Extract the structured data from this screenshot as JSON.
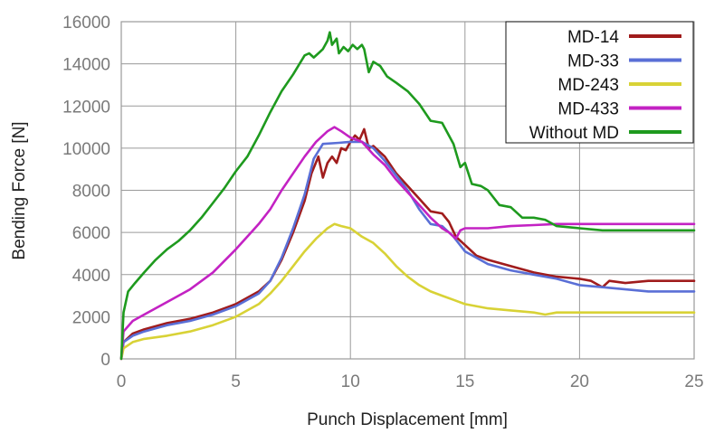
{
  "chart_data": {
    "type": "line",
    "title": "",
    "xlabel": "Punch Displacement [mm]",
    "ylabel": "Bending Force [N]",
    "xlim": [
      0,
      25
    ],
    "ylim": [
      0,
      16000
    ],
    "x_ticks": [
      0,
      5,
      10,
      15,
      20,
      25
    ],
    "x_tick_labels": [
      "0",
      "5",
      "10",
      "15",
      "20",
      "25"
    ],
    "y_ticks": [
      0,
      2000,
      4000,
      6000,
      8000,
      10000,
      12000,
      14000,
      16000
    ],
    "y_tick_labels": [
      "0",
      "2000",
      "4000",
      "6000",
      "8000",
      "10000",
      "12000",
      "14000",
      "16000"
    ],
    "grid": true,
    "legend_position": "top-right",
    "series": [
      {
        "name": "MD-14",
        "color": "#a01c1c",
        "points": [
          [
            0,
            0
          ],
          [
            0.1,
            800
          ],
          [
            0.5,
            1200
          ],
          [
            1,
            1400
          ],
          [
            2,
            1700
          ],
          [
            3,
            1900
          ],
          [
            4,
            2200
          ],
          [
            5,
            2600
          ],
          [
            6,
            3200
          ],
          [
            6.5,
            3700
          ],
          [
            7,
            4700
          ],
          [
            7.5,
            6000
          ],
          [
            8,
            7500
          ],
          [
            8.3,
            8800
          ],
          [
            8.6,
            9600
          ],
          [
            8.8,
            8600
          ],
          [
            9,
            9300
          ],
          [
            9.2,
            9600
          ],
          [
            9.4,
            9300
          ],
          [
            9.6,
            10000
          ],
          [
            9.8,
            9900
          ],
          [
            10,
            10300
          ],
          [
            10.2,
            10600
          ],
          [
            10.4,
            10400
          ],
          [
            10.6,
            10900
          ],
          [
            10.8,
            10000
          ],
          [
            11,
            10100
          ],
          [
            11.5,
            9600
          ],
          [
            12,
            8800
          ],
          [
            12.5,
            8200
          ],
          [
            13,
            7600
          ],
          [
            13.5,
            7000
          ],
          [
            14,
            6900
          ],
          [
            14.3,
            6500
          ],
          [
            14.6,
            5800
          ],
          [
            15,
            5400
          ],
          [
            15.5,
            4900
          ],
          [
            16,
            4700
          ],
          [
            17,
            4400
          ],
          [
            18,
            4100
          ],
          [
            19,
            3900
          ],
          [
            20,
            3800
          ],
          [
            20.5,
            3700
          ],
          [
            21,
            3400
          ],
          [
            21.3,
            3700
          ],
          [
            22,
            3600
          ],
          [
            23,
            3700
          ],
          [
            24,
            3700
          ],
          [
            25,
            3700
          ]
        ]
      },
      {
        "name": "MD-33",
        "color": "#5a6fd6",
        "points": [
          [
            0,
            0
          ],
          [
            0.1,
            800
          ],
          [
            0.5,
            1100
          ],
          [
            1,
            1300
          ],
          [
            2,
            1600
          ],
          [
            3,
            1800
          ],
          [
            4,
            2100
          ],
          [
            5,
            2500
          ],
          [
            6,
            3100
          ],
          [
            6.5,
            3700
          ],
          [
            7,
            4800
          ],
          [
            7.5,
            6200
          ],
          [
            8,
            7800
          ],
          [
            8.4,
            9500
          ],
          [
            8.8,
            10200
          ],
          [
            9.5,
            10250
          ],
          [
            10,
            10300
          ],
          [
            10.5,
            10300
          ],
          [
            11,
            10000
          ],
          [
            11.5,
            9400
          ],
          [
            12,
            8700
          ],
          [
            12.5,
            8000
          ],
          [
            13,
            7100
          ],
          [
            13.5,
            6400
          ],
          [
            14,
            6300
          ],
          [
            14.5,
            5800
          ],
          [
            15,
            5100
          ],
          [
            15.5,
            4800
          ],
          [
            16,
            4500
          ],
          [
            17,
            4200
          ],
          [
            18,
            4000
          ],
          [
            19,
            3800
          ],
          [
            20,
            3500
          ],
          [
            21,
            3400
          ],
          [
            22,
            3300
          ],
          [
            23,
            3200
          ],
          [
            24,
            3200
          ],
          [
            25,
            3200
          ]
        ]
      },
      {
        "name": "MD-243",
        "color": "#d8d236",
        "points": [
          [
            0,
            0
          ],
          [
            0.1,
            500
          ],
          [
            0.5,
            800
          ],
          [
            1,
            950
          ],
          [
            2,
            1100
          ],
          [
            3,
            1300
          ],
          [
            4,
            1600
          ],
          [
            5,
            2000
          ],
          [
            6,
            2600
          ],
          [
            6.5,
            3100
          ],
          [
            7,
            3700
          ],
          [
            7.5,
            4400
          ],
          [
            8,
            5100
          ],
          [
            8.5,
            5700
          ],
          [
            9,
            6200
          ],
          [
            9.3,
            6400
          ],
          [
            9.6,
            6300
          ],
          [
            10,
            6200
          ],
          [
            10.5,
            5800
          ],
          [
            11,
            5500
          ],
          [
            11.5,
            5000
          ],
          [
            12,
            4400
          ],
          [
            12.5,
            3900
          ],
          [
            13,
            3500
          ],
          [
            13.5,
            3200
          ],
          [
            14,
            3000
          ],
          [
            14.5,
            2800
          ],
          [
            15,
            2600
          ],
          [
            16,
            2400
          ],
          [
            17,
            2300
          ],
          [
            18,
            2200
          ],
          [
            18.5,
            2100
          ],
          [
            19,
            2200
          ],
          [
            20,
            2200
          ],
          [
            22,
            2200
          ],
          [
            25,
            2200
          ]
        ]
      },
      {
        "name": "MD-433",
        "color": "#c322c3",
        "points": [
          [
            0,
            0
          ],
          [
            0.1,
            1300
          ],
          [
            0.5,
            1800
          ],
          [
            1,
            2100
          ],
          [
            2,
            2700
          ],
          [
            3,
            3300
          ],
          [
            4,
            4100
          ],
          [
            5,
            5200
          ],
          [
            6,
            6400
          ],
          [
            6.5,
            7100
          ],
          [
            7,
            8000
          ],
          [
            7.5,
            8800
          ],
          [
            8,
            9600
          ],
          [
            8.5,
            10300
          ],
          [
            9,
            10800
          ],
          [
            9.3,
            11000
          ],
          [
            9.6,
            10800
          ],
          [
            10,
            10500
          ],
          [
            10.5,
            10300
          ],
          [
            11,
            9700
          ],
          [
            11.5,
            9200
          ],
          [
            12,
            8500
          ],
          [
            12.5,
            7900
          ],
          [
            13,
            7300
          ],
          [
            13.5,
            6700
          ],
          [
            14,
            6200
          ],
          [
            14.3,
            6000
          ],
          [
            14.6,
            5700
          ],
          [
            14.8,
            6100
          ],
          [
            15,
            6200
          ],
          [
            16,
            6200
          ],
          [
            17,
            6300
          ],
          [
            18,
            6350
          ],
          [
            19,
            6400
          ],
          [
            20,
            6400
          ],
          [
            22,
            6400
          ],
          [
            25,
            6400
          ]
        ]
      },
      {
        "name": "Without MD",
        "color": "#1e9a1e",
        "points": [
          [
            0,
            0
          ],
          [
            0.1,
            2200
          ],
          [
            0.3,
            3200
          ],
          [
            0.6,
            3600
          ],
          [
            1,
            4100
          ],
          [
            1.5,
            4700
          ],
          [
            2,
            5200
          ],
          [
            2.5,
            5600
          ],
          [
            3,
            6100
          ],
          [
            3.5,
            6700
          ],
          [
            4,
            7400
          ],
          [
            4.5,
            8100
          ],
          [
            5,
            8900
          ],
          [
            5.5,
            9600
          ],
          [
            6,
            10600
          ],
          [
            6.5,
            11700
          ],
          [
            7,
            12700
          ],
          [
            7.5,
            13500
          ],
          [
            8,
            14400
          ],
          [
            8.2,
            14500
          ],
          [
            8.4,
            14300
          ],
          [
            8.6,
            14500
          ],
          [
            8.8,
            14700
          ],
          [
            9,
            15100
          ],
          [
            9.1,
            15500
          ],
          [
            9.2,
            14900
          ],
          [
            9.4,
            15200
          ],
          [
            9.5,
            14500
          ],
          [
            9.7,
            14800
          ],
          [
            9.9,
            14600
          ],
          [
            10.1,
            14900
          ],
          [
            10.3,
            14700
          ],
          [
            10.5,
            14900
          ],
          [
            10.6,
            14700
          ],
          [
            10.8,
            13600
          ],
          [
            11,
            14100
          ],
          [
            11.3,
            13900
          ],
          [
            11.6,
            13400
          ],
          [
            12,
            13100
          ],
          [
            12.5,
            12700
          ],
          [
            13,
            12100
          ],
          [
            13.5,
            11300
          ],
          [
            14,
            11200
          ],
          [
            14.5,
            10200
          ],
          [
            14.8,
            9100
          ],
          [
            15,
            9300
          ],
          [
            15.3,
            8300
          ],
          [
            15.7,
            8200
          ],
          [
            16,
            8000
          ],
          [
            16.5,
            7300
          ],
          [
            17,
            7200
          ],
          [
            17.5,
            6700
          ],
          [
            18,
            6700
          ],
          [
            18.5,
            6600
          ],
          [
            19,
            6300
          ],
          [
            20,
            6200
          ],
          [
            21,
            6100
          ],
          [
            22,
            6100
          ],
          [
            25,
            6100
          ]
        ]
      }
    ]
  }
}
